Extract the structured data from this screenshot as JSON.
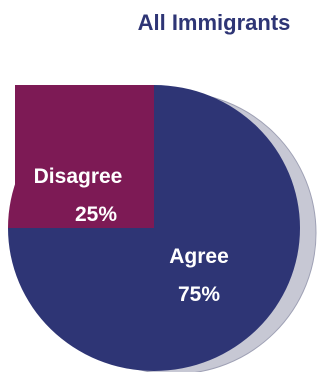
{
  "chart_data": {
    "type": "pie",
    "title": "All Immigrants",
    "slices": [
      {
        "label": "Disagree",
        "value": 25,
        "value_label": "25%",
        "color": "#7d1a55"
      },
      {
        "label": "Agree",
        "value": 75,
        "value_label": "75%",
        "color": "#2e3575"
      }
    ],
    "colors": {
      "title": "#2e3575",
      "shadow": "#c7c8d4",
      "label_text": "#ffffff"
    }
  }
}
